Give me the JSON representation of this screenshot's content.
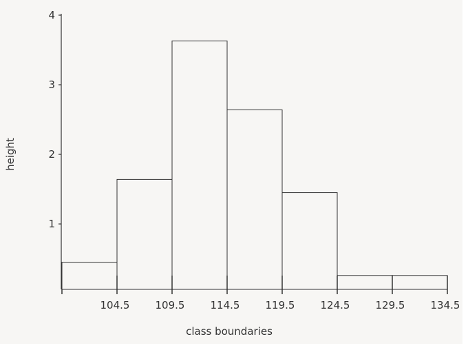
{
  "chart_data": {
    "type": "histogram",
    "x_label": "class boundaries",
    "y_label": "height",
    "bins": [
      99.5,
      104.5,
      109.5,
      114.5,
      119.5,
      124.5,
      129.5,
      134.5
    ],
    "values": [
      0.45,
      1.64,
      3.63,
      2.64,
      1.45,
      0.26,
      0.26
    ],
    "color": "#f7f6f4",
    "edge_color": "#333333",
    "xlim": [
      99.5,
      134.5
    ],
    "ylim": [
      0.06,
      4
    ],
    "xticks": [
      104.5,
      109.5,
      114.5,
      119.5,
      124.5,
      129.5,
      134.5
    ],
    "yticks": [
      1,
      2,
      3,
      4
    ]
  }
}
